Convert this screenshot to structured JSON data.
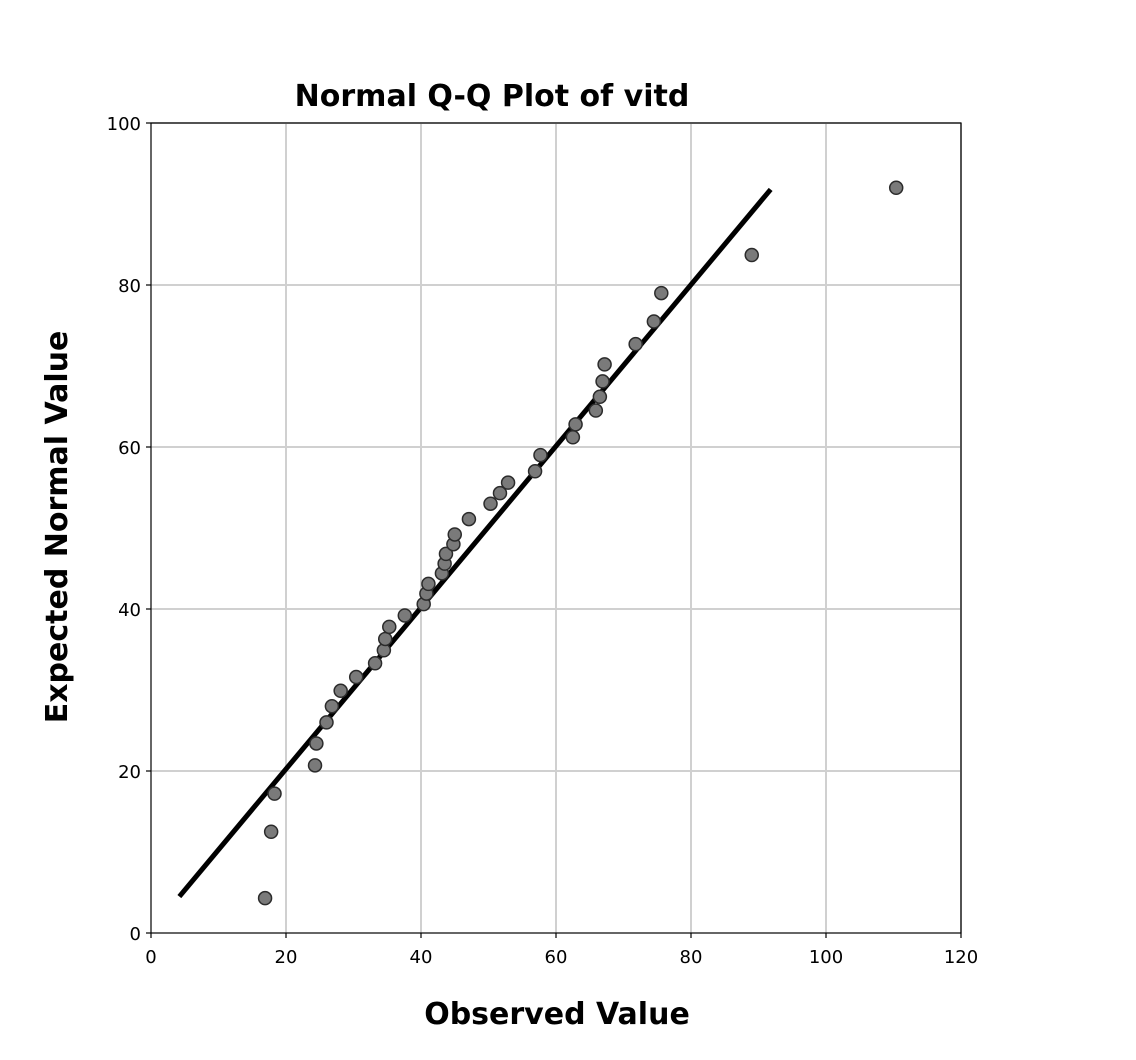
{
  "chart_data": {
    "type": "scatter",
    "title": "Normal Q-Q Plot of vitd",
    "xlabel": "Observed Value",
    "ylabel": "Expected Normal Value",
    "xlim": [
      0,
      120
    ],
    "ylim": [
      0,
      100
    ],
    "xticks": [
      0,
      20,
      40,
      60,
      80,
      100,
      120
    ],
    "yticks": [
      0,
      20,
      40,
      60,
      80,
      100
    ],
    "grid": true,
    "colors": {
      "point_fill": "#7a7a7a",
      "point_stroke": "#2b2b2b",
      "line": "#000000",
      "grid": "#d0d0d0",
      "axis": "#000000"
    },
    "reference_line": {
      "x": [
        4.2,
        91.8
      ],
      "y": [
        4.5,
        91.8
      ]
    },
    "points": [
      {
        "x": 16.9,
        "y": 4.3
      },
      {
        "x": 17.8,
        "y": 12.5
      },
      {
        "x": 18.3,
        "y": 17.2
      },
      {
        "x": 24.3,
        "y": 20.7
      },
      {
        "x": 24.5,
        "y": 23.4
      },
      {
        "x": 26.0,
        "y": 26.0
      },
      {
        "x": 26.8,
        "y": 28.0
      },
      {
        "x": 28.1,
        "y": 29.9
      },
      {
        "x": 30.4,
        "y": 31.6
      },
      {
        "x": 33.2,
        "y": 33.3
      },
      {
        "x": 34.5,
        "y": 34.9
      },
      {
        "x": 34.7,
        "y": 36.3
      },
      {
        "x": 35.3,
        "y": 37.8
      },
      {
        "x": 37.6,
        "y": 39.2
      },
      {
        "x": 40.4,
        "y": 40.6
      },
      {
        "x": 40.8,
        "y": 41.9
      },
      {
        "x": 41.1,
        "y": 43.1
      },
      {
        "x": 43.1,
        "y": 44.4
      },
      {
        "x": 43.5,
        "y": 45.6
      },
      {
        "x": 43.7,
        "y": 46.8
      },
      {
        "x": 44.8,
        "y": 48.0
      },
      {
        "x": 45.0,
        "y": 49.2
      },
      {
        "x": 47.1,
        "y": 51.1
      },
      {
        "x": 50.3,
        "y": 53.0
      },
      {
        "x": 51.7,
        "y": 54.3
      },
      {
        "x": 52.9,
        "y": 55.6
      },
      {
        "x": 56.9,
        "y": 57.0
      },
      {
        "x": 57.7,
        "y": 59.0
      },
      {
        "x": 62.5,
        "y": 61.2
      },
      {
        "x": 62.9,
        "y": 62.8
      },
      {
        "x": 65.9,
        "y": 64.5
      },
      {
        "x": 66.5,
        "y": 66.2
      },
      {
        "x": 66.9,
        "y": 68.1
      },
      {
        "x": 67.2,
        "y": 70.2
      },
      {
        "x": 71.8,
        "y": 72.7
      },
      {
        "x": 74.5,
        "y": 75.5
      },
      {
        "x": 75.6,
        "y": 79.0
      },
      {
        "x": 89.0,
        "y": 83.7
      },
      {
        "x": 110.4,
        "y": 92.0
      }
    ]
  }
}
